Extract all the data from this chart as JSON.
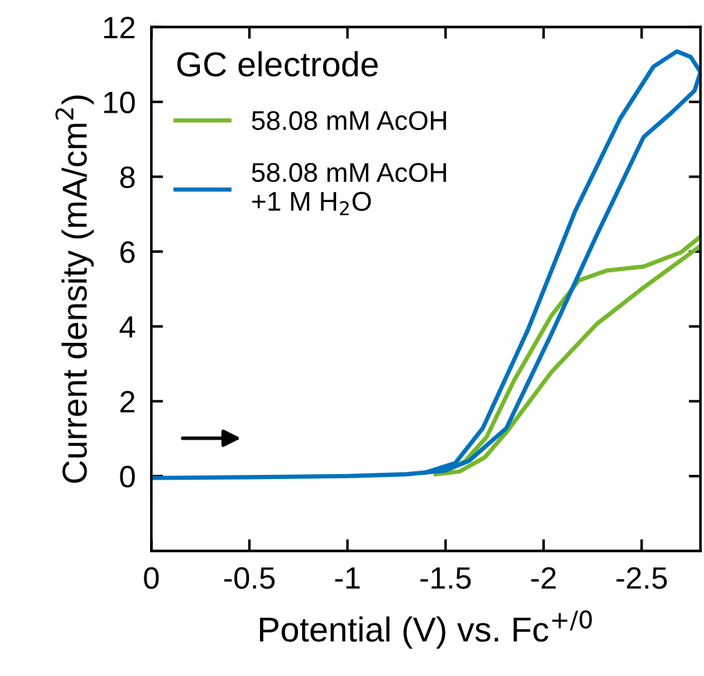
{
  "chart_data": {
    "type": "line",
    "xlabel": "Potential (V) vs. Fc$^{+/0}$",
    "ylabel": "Current density (mA/cm$^{2}$)",
    "legend_title": "GC electrode",
    "legend": "top left",
    "grid": false,
    "marker": "none",
    "line_style": "solid",
    "xlim": [
      0,
      -2.8
    ],
    "xticks": [
      0,
      -0.5,
      -1,
      -1.5,
      -2,
      -2.5
    ],
    "ylim": [
      -2,
      12
    ],
    "yticks": [
      0,
      2,
      4,
      6,
      8,
      10,
      12
    ],
    "series": [
      {
        "name": "58.08 mM AcOH",
        "color": "#77b82a",
        "x": [
          -1.45,
          -1.57,
          -1.7,
          -1.81,
          -2.04,
          -2.27,
          -2.51,
          -2.8
        ],
        "values": [
          0.05,
          0.12,
          0.5,
          1.17,
          2.78,
          4.06,
          5.04,
          6.15
        ]
      },
      {
        "color": "#77b82a",
        "x": [
          -2.8,
          -2.7,
          -2.51,
          -2.32,
          -2.18,
          -2.04,
          -1.85,
          -1.71,
          -1.6,
          -1.5
        ],
        "values": [
          6.4,
          5.98,
          5.6,
          5.49,
          5.23,
          4.29,
          2.56,
          1.05,
          0.4,
          0.15
        ]
      },
      {
        "name": "58.08 mM AcOH\n+1 M H$_{2}$O",
        "color": "#0072bd",
        "x": [
          0,
          -0.5,
          -1,
          -1.3,
          -1.5,
          -1.62,
          -1.81,
          -2.04,
          -2.27,
          -2.51,
          -2.65,
          -2.77,
          -2.8
        ],
        "values": [
          -0.05,
          -0.03,
          0,
          0.05,
          0.15,
          0.41,
          1.28,
          3.8,
          6.43,
          9.06,
          9.7,
          10.3,
          10.8
        ]
      },
      {
        "color": "#0072bd",
        "x": [
          -2.8,
          -2.75,
          -2.68,
          -2.56,
          -2.39,
          -2.16,
          -1.92,
          -1.69,
          -1.55,
          -1.4
        ],
        "values": [
          10.8,
          11.2,
          11.35,
          10.94,
          9.55,
          7.07,
          3.91,
          1.28,
          0.35,
          0.1
        ]
      }
    ]
  }
}
